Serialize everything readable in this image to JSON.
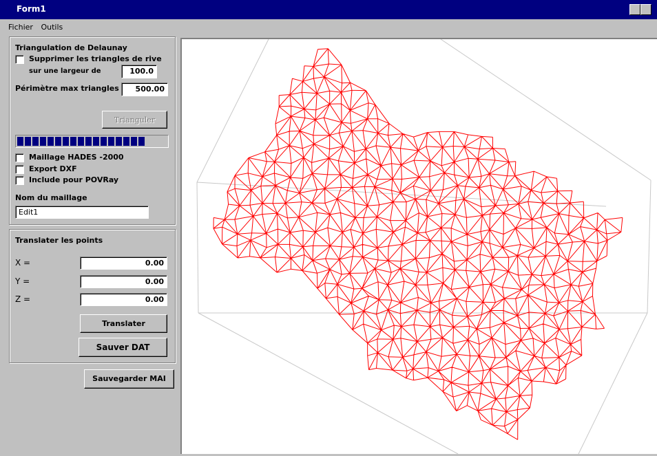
{
  "window": {
    "title": "Form1"
  },
  "menu": [
    "Fichier",
    "Outils"
  ],
  "triangulation": {
    "title": "Triangulation de Delaunay",
    "remove_edges_label": "Supprimer les triangles de rive",
    "width_label": "sur une largeur de",
    "width_value": "100.0",
    "perimeter_label": "Périmètre max triangles",
    "perimeter_value": "500.00",
    "button": "Trianguler",
    "progress": 85,
    "options": [
      "Maillage HADES -2000",
      "Export DXF",
      "Include pour POVRay"
    ],
    "mesh_name_label": "Nom du maillage",
    "mesh_name_value": "Edit1"
  },
  "translate": {
    "title": "Translater les points",
    "fields": [
      {
        "label": "X =",
        "value": "0.00"
      },
      {
        "label": "Y =",
        "value": "0.00"
      },
      {
        "label": "Z =",
        "value": "0.00"
      }
    ],
    "translate_button": "Translater",
    "save_button": "Sauver DAT"
  },
  "save_mai_button": "Sauvegarder MAI"
}
